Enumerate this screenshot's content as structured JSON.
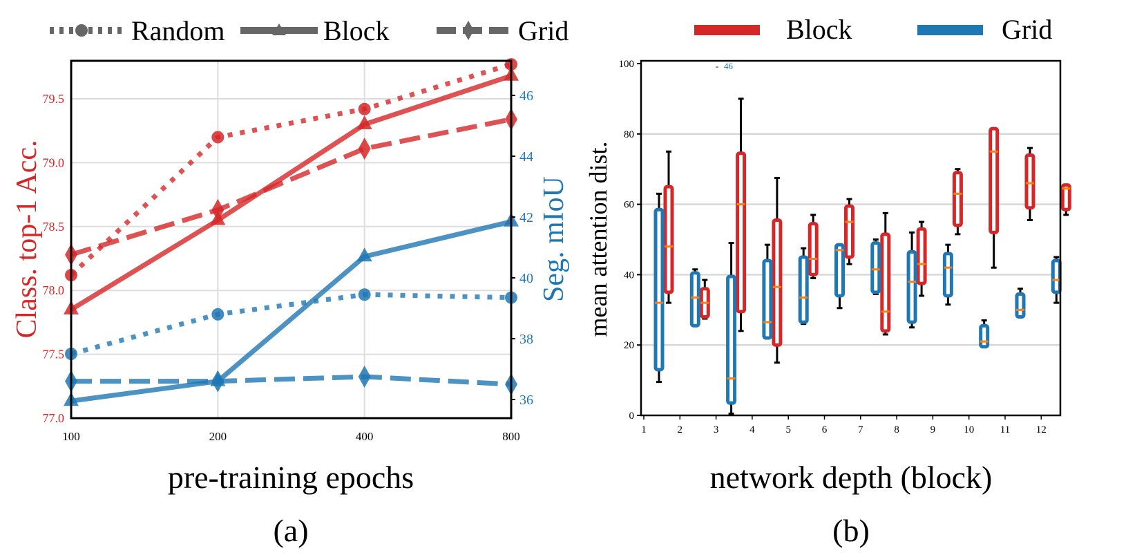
{
  "colors": {
    "block": "#d62728",
    "grid": "#1f77b4",
    "median": "#ff7f0e",
    "legend_gray": "#666666"
  },
  "chart_data": [
    {
      "type": "line",
      "caption": "(a)",
      "xlabel": "pre-training epochs",
      "ylabel_left": "Class. top-1 Acc.",
      "ylabel_right": "Seg. mIoU",
      "x": [
        100,
        200,
        400,
        800
      ],
      "x_ticks": [
        "100",
        "200",
        "400",
        "800"
      ],
      "x_scale": "log",
      "ylim_left": [
        77.0,
        79.8
      ],
      "ylim_right": [
        35.7,
        47.0
      ],
      "yticks_left": [
        "77.0",
        "77.5",
        "78.0",
        "78.5",
        "79.0",
        "79.5"
      ],
      "yticks_right": [
        "36",
        "38",
        "40",
        "42",
        "44",
        "46"
      ],
      "grid": true,
      "legend": {
        "placement": "top",
        "entries": [
          {
            "label": "Random",
            "style": "dotted",
            "marker": "circle"
          },
          {
            "label": "Block",
            "style": "solid",
            "marker": "triangle"
          },
          {
            "label": "Grid",
            "style": "dashed",
            "marker": "diamond"
          }
        ]
      },
      "series": [
        {
          "metric": "classification",
          "axis": "left",
          "style": "dotted",
          "marker": "circle",
          "values": [
            78.12,
            79.2,
            79.42,
            79.77
          ]
        },
        {
          "metric": "classification",
          "axis": "left",
          "style": "solid",
          "marker": "triangle",
          "values": [
            77.85,
            78.55,
            79.3,
            79.68
          ]
        },
        {
          "metric": "classification",
          "axis": "left",
          "style": "dashed",
          "marker": "diamond",
          "values": [
            78.28,
            78.63,
            79.11,
            79.34
          ]
        },
        {
          "metric": "segmentation",
          "axis": "right",
          "style": "dotted",
          "marker": "circle",
          "values": [
            37.5,
            38.8,
            39.45,
            39.35
          ]
        },
        {
          "metric": "segmentation",
          "axis": "right",
          "style": "solid",
          "marker": "triangle",
          "values": [
            35.95,
            36.6,
            40.7,
            41.85
          ]
        },
        {
          "metric": "segmentation",
          "axis": "right",
          "style": "dashed",
          "marker": "diamond",
          "values": [
            36.6,
            36.6,
            36.75,
            36.5
          ]
        }
      ]
    },
    {
      "type": "box",
      "caption": "(b)",
      "xlabel": "network depth (block)",
      "ylabel": "mean attention dist.",
      "categories": [
        "1",
        "2",
        "3",
        "4",
        "5",
        "6",
        "7",
        "8",
        "9",
        "10",
        "11",
        "12"
      ],
      "ylim": [
        0,
        100
      ],
      "yticks": [
        "0",
        "20",
        "40",
        "60",
        "80",
        "100"
      ],
      "grid": true,
      "annotation": {
        "dash": "-",
        "text": "46"
      },
      "legend": {
        "placement": "top",
        "entries": [
          {
            "label": "Block"
          },
          {
            "label": "Grid"
          }
        ]
      },
      "series": [
        {
          "name": "Block",
          "boxes": [
            {
              "whislo": 32,
              "q1": 35,
              "med": 48,
              "q3": 65,
              "whishi": 75
            },
            {
              "whislo": 27.5,
              "q1": 28,
              "med": 32,
              "q3": 36,
              "whishi": 38.5
            },
            {
              "whislo": 24,
              "q1": 29.5,
              "med": 60,
              "q3": 74.5,
              "whishi": 90
            },
            {
              "whislo": 15,
              "q1": 20,
              "med": 36.5,
              "q3": 55.5,
              "whishi": 67.5
            },
            {
              "whislo": 39,
              "q1": 40,
              "med": 44.5,
              "q3": 54.5,
              "whishi": 57
            },
            {
              "whislo": 43,
              "q1": 45,
              "med": 55,
              "q3": 59.5,
              "whishi": 61.5
            },
            {
              "whislo": 23,
              "q1": 24,
              "med": 29.5,
              "q3": 51.5,
              "whishi": 57.5
            },
            {
              "whislo": 34,
              "q1": 37.5,
              "med": 43,
              "q3": 53,
              "whishi": 55
            },
            {
              "whislo": 51.5,
              "q1": 54,
              "med": 63,
              "q3": 69,
              "whishi": 70
            },
            {
              "whislo": 42,
              "q1": 52,
              "med": 75,
              "q3": 81.5,
              "whishi": 81.5
            },
            {
              "whislo": 55.5,
              "q1": 59,
              "med": 66,
              "q3": 74,
              "whishi": 76
            },
            {
              "whislo": 57,
              "q1": 58.5,
              "med": 64.5,
              "q3": 65.5,
              "whishi": 65.5
            }
          ]
        },
        {
          "name": "Grid",
          "boxes": [
            {
              "whislo": 9.5,
              "q1": 13,
              "med": 32,
              "q3": 58.5,
              "whishi": 63
            },
            {
              "whislo": 25.5,
              "q1": 25.5,
              "med": 33.5,
              "q3": 40.5,
              "whishi": 41.5
            },
            {
              "whislo": 0.5,
              "q1": 3.5,
              "med": 10.5,
              "q3": 39.5,
              "whishi": 49
            },
            {
              "whislo": 22,
              "q1": 22,
              "med": 26.5,
              "q3": 44,
              "whishi": 48.5
            },
            {
              "whislo": 26,
              "q1": 26.5,
              "med": 33.5,
              "q3": 45,
              "whishi": 47.5
            },
            {
              "whislo": 30.5,
              "q1": 34,
              "med": 47,
              "q3": 48.5,
              "whishi": 48.5
            },
            {
              "whislo": 34.5,
              "q1": 35,
              "med": 41.5,
              "q3": 49,
              "whishi": 50
            },
            {
              "whislo": 25,
              "q1": 26.5,
              "med": 38,
              "q3": 46.5,
              "whishi": 52
            },
            {
              "whislo": 31.5,
              "q1": 34,
              "med": 42,
              "q3": 46,
              "whishi": 48.5
            },
            {
              "whislo": 19.5,
              "q1": 19.5,
              "med": 21,
              "q3": 25.5,
              "whishi": 27
            },
            {
              "whislo": 28,
              "q1": 28,
              "med": 30,
              "q3": 34.5,
              "whishi": 36
            },
            {
              "whislo": 32,
              "q1": 35,
              "med": 38.5,
              "q3": 44,
              "whishi": 45
            }
          ]
        }
      ]
    }
  ]
}
